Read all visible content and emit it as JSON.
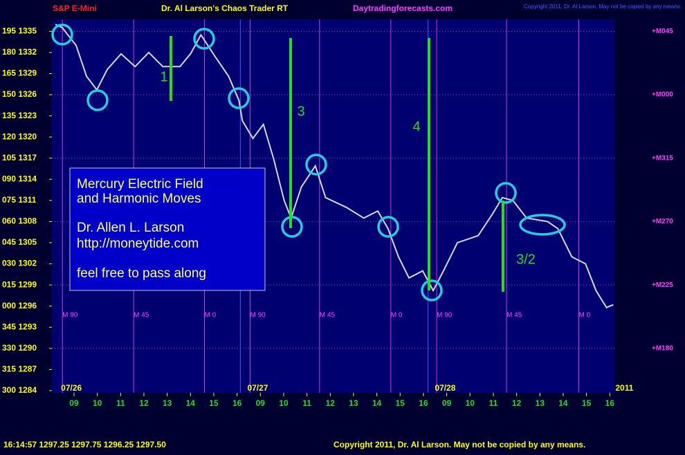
{
  "chart_data": {
    "type": "line",
    "title": "Dr. Al Larson's Chaos Trader RT",
    "symbol": "S&P E-Mini",
    "site": "Daytradingforecasts.com",
    "copyright_top": "Copyright 2011, Dr. Al Larson, May not be copied by any means.",
    "x": [
      -0.8,
      -0.5,
      0.09,
      0.54,
      0.98,
      1.43,
      2.02,
      2.62,
      3.21,
      3.81,
      4.55,
      5.0,
      5.45,
      6.04,
      6.64,
      7.08,
      7.23,
      7.68,
      8.13,
      8.57,
      9.02,
      9.32,
      9.76,
      10.36,
      10.8,
      11.7,
      12.44,
      13.04,
      13.48,
      13.93,
      14.38,
      14.97,
      15.42,
      15.86,
      16.46,
      17.35,
      17.95,
      18.39,
      18.84,
      19.43,
      20.33,
      20.77,
      21.37,
      21.96,
      22.41,
      22.86,
      23.15
    ],
    "series": [
      {
        "name": "S&P E-Mini",
        "color": "#d8d8d8",
        "values": [
          1336,
          1335.5,
          1333,
          1328.6,
          1326.7,
          1329.6,
          1331.8,
          1330,
          1332,
          1330,
          1330,
          1331.8,
          1334.5,
          1331.5,
          1328.6,
          1325.2,
          1322.3,
          1319.8,
          1321.8,
          1316.9,
          1311,
          1308.5,
          1312.9,
          1315.9,
          1311.4,
          1310,
          1308.5,
          1309.5,
          1307,
          1303,
          1300,
          1301,
          1298.2,
          1301,
          1305,
          1306,
          1309,
          1311.4,
          1311,
          1308.5,
          1308,
          1307,
          1303,
          1302,
          1298.2,
          1295.8,
          1296.2
        ]
      }
    ],
    "xlim": [
      -0.95,
      23.2
    ],
    "ylim": [
      1283.7,
      1336.7
    ],
    "xticks": [
      {
        "value": 0,
        "label": "09"
      },
      {
        "value": 1,
        "label": "10"
      },
      {
        "value": 2,
        "label": "11"
      },
      {
        "value": 3,
        "label": "12"
      },
      {
        "value": 4,
        "label": "13"
      },
      {
        "value": 5,
        "label": "14"
      },
      {
        "value": 6,
        "label": "15"
      },
      {
        "value": 7,
        "label": "16"
      },
      {
        "value": 8,
        "label": "09"
      },
      {
        "value": 9,
        "label": "10"
      },
      {
        "value": 10,
        "label": "11"
      },
      {
        "value": 11,
        "label": "12"
      },
      {
        "value": 12,
        "label": "13"
      },
      {
        "value": 13,
        "label": "14"
      },
      {
        "value": 14,
        "label": "15"
      },
      {
        "value": 15,
        "label": "16"
      },
      {
        "value": 16,
        "label": "09"
      },
      {
        "value": 17,
        "label": "10"
      },
      {
        "value": 18,
        "label": "11"
      },
      {
        "value": 19,
        "label": "12"
      },
      {
        "value": 20,
        "label": "13"
      },
      {
        "value": 21,
        "label": "14"
      },
      {
        "value": 22,
        "label": "15"
      },
      {
        "value": 23,
        "label": "16"
      }
    ],
    "dates": [
      {
        "value": -0.5,
        "label": "07/26"
      },
      {
        "value": 7.5,
        "label": "07/27"
      },
      {
        "value": 15.55,
        "label": "07/28"
      },
      {
        "value": 23.3,
        "label": "2011"
      }
    ],
    "yticks": [
      {
        "value": 1335,
        "label": "195 1335"
      },
      {
        "value": 1332,
        "label": "180 1332"
      },
      {
        "value": 1329,
        "label": "165 1329"
      },
      {
        "value": 1326,
        "label": "150 1326"
      },
      {
        "value": 1323,
        "label": "135 1323"
      },
      {
        "value": 1320,
        "label": "120 1320"
      },
      {
        "value": 1317,
        "label": "105 1317"
      },
      {
        "value": 1314,
        "label": "090 1314"
      },
      {
        "value": 1311,
        "label": "075 1311"
      },
      {
        "value": 1308,
        "label": "060 1308"
      },
      {
        "value": 1305,
        "label": "045 1305"
      },
      {
        "value": 1302,
        "label": "030 1302"
      },
      {
        "value": 1299,
        "label": "015 1299"
      },
      {
        "value": 1296,
        "label": "000 1296"
      },
      {
        "value": 1293,
        "label": "345 1293"
      },
      {
        "value": 1290,
        "label": "330 1290"
      },
      {
        "value": 1287,
        "label": "315 1287"
      },
      {
        "value": 1284,
        "label": "300 1284"
      }
    ],
    "y2lim": [
      1283.7,
      1336.7
    ],
    "y2ticks": [
      {
        "value": 1335,
        "label": "+M045"
      },
      {
        "value": 1326,
        "label": "+M000"
      },
      {
        "value": 1317,
        "label": "+M315"
      },
      {
        "value": 1308,
        "label": "+M270"
      },
      {
        "value": 1299,
        "label": "+M225"
      },
      {
        "value": 1290,
        "label": "+M180"
      }
    ],
    "day_lines": [
      7.14,
      15.2
    ],
    "markers": [
      {
        "value": -0.5,
        "label": "M  90"
      },
      {
        "value": 2.56,
        "label": "M  45"
      },
      {
        "value": 5.6,
        "label": "M  0"
      },
      {
        "value": 7.56,
        "label": "M  90"
      },
      {
        "value": 10.54,
        "label": "M  45"
      },
      {
        "value": 13.6,
        "label": "M  0"
      },
      {
        "value": 15.57,
        "label": "M  90"
      },
      {
        "value": 18.57,
        "label": "M  45"
      },
      {
        "value": 21.67,
        "label": "M  0"
      }
    ],
    "annotations": [
      "1",
      "3",
      "4",
      "3/2"
    ],
    "note_box": [
      "Mercury Electric Field",
      "and Harmonic Moves",
      "Dr. Allen L. Larson",
      "http://moneytide.com",
      "feel free to pass along"
    ],
    "footer_quote": "16:14:57  1297.25 1297.75 1296.25 1297.50",
    "footer_copyright": "Copyright 2011, Dr. Al Larson. May not be copied by any means."
  }
}
